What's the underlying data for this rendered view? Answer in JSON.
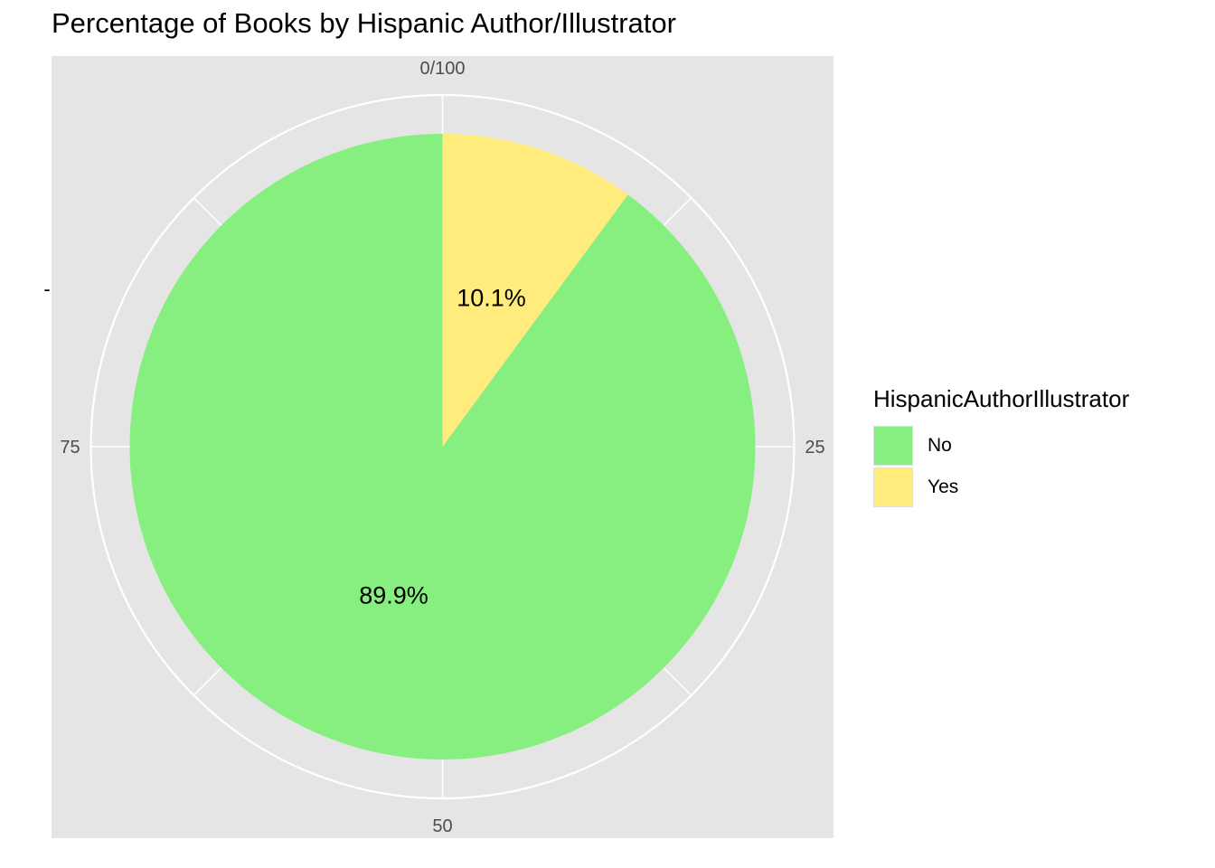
{
  "chart_data": {
    "type": "pie",
    "title": "Percentage of Books by Hispanic Author/Illustrator",
    "y_axis_label": "-",
    "slices": [
      {
        "label": "No",
        "value": 89.9,
        "display": "89.9%",
        "color": "#86EF7F"
      },
      {
        "label": "Yes",
        "value": 10.1,
        "display": "10.1%",
        "color": "#FFEC7D"
      }
    ],
    "theta_ticks": [
      {
        "value": 0,
        "label": "0/100"
      },
      {
        "value": 25,
        "label": "25"
      },
      {
        "value": 50,
        "label": "50"
      },
      {
        "value": 75,
        "label": "75"
      }
    ],
    "legend": {
      "title": "HispanicAuthorIllustrator",
      "placement": "right",
      "items": [
        {
          "label": "No",
          "color": "#86EF7F"
        },
        {
          "label": "Yes",
          "color": "#FFEC7D"
        }
      ]
    },
    "panel_background": "#E5E5E5",
    "grid_color": "#FFFFFF",
    "grid": true
  }
}
